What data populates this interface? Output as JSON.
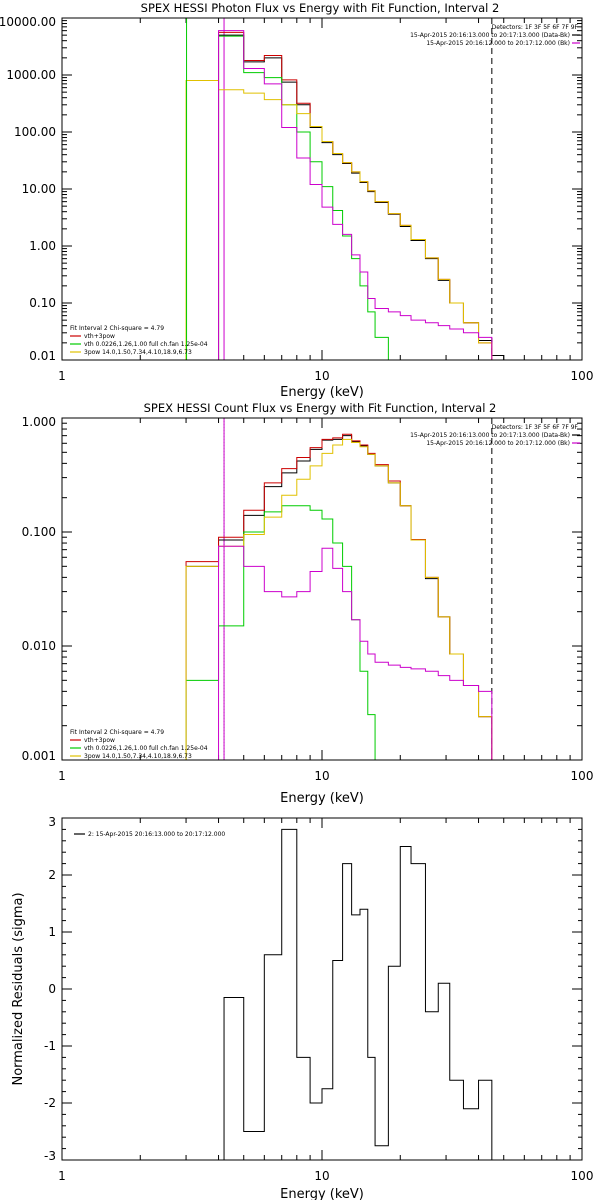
{
  "panels": [
    {
      "id": "photon",
      "title": "SPEX HESSI Photon Flux vs Energy with Fit Function, Interval 2",
      "xlabel": "Energy (keV)",
      "ylabel": "",
      "x_scale": "log",
      "y_scale": "log",
      "xlim": [
        1,
        100
      ],
      "ylim": [
        0.01,
        10000
      ],
      "x_ticks": [
        {
          "v": 1,
          "label": "1"
        },
        {
          "v": 10,
          "label": "10"
        },
        {
          "v": 100,
          "label": "100"
        }
      ],
      "y_ticks": [
        {
          "v": 0.01,
          "label": "0.01"
        },
        {
          "v": 0.1,
          "label": "0.10"
        },
        {
          "v": 1,
          "label": "1.00"
        },
        {
          "v": 10,
          "label": "10.00"
        },
        {
          "v": 100,
          "label": "100.00"
        },
        {
          "v": 1000,
          "label": "1000.00"
        },
        {
          "v": 10000,
          "label": "10000.00"
        }
      ],
      "vlines": [
        {
          "x": 4.2,
          "style": "solid",
          "color": "#cc00cc"
        },
        {
          "x": 45,
          "style": "dashed",
          "color": "#000000"
        }
      ],
      "info": [
        "Detectors: 1F 3F 5F 6F 7F 9F",
        "15-Apr-2015 20:16:13.000 to 20:17:13.000 (Data-Bk)",
        "15-Apr-2015 20:16:12.000 to 20:17:12.000 (Bk)"
      ],
      "info_colors": [
        "#000000",
        "#000000",
        "#cc00cc"
      ],
      "legend": [
        {
          "text": "Fit Interval 2   Chi-square = 4.79",
          "color": null
        },
        {
          "text": "vth+3pow",
          "color": "#cc0000"
        },
        {
          "text": "vth 0.0226,1.26,1.00  full ch.fan 1.25e-04",
          "color": "#00cc00"
        },
        {
          "text": "3pow 14.0,1.50,7.34,4.10,18.9,6.73",
          "color": "#e0c000"
        }
      ]
    },
    {
      "id": "count",
      "title": "SPEX HESSI Count Flux vs Energy with Fit Function, Interval 2",
      "xlabel": "Energy (keV)",
      "ylabel": "",
      "x_scale": "log",
      "y_scale": "log",
      "xlim": [
        1,
        100
      ],
      "ylim": [
        0.001,
        1
      ],
      "x_ticks": [
        {
          "v": 1,
          "label": "1"
        },
        {
          "v": 10,
          "label": "10"
        },
        {
          "v": 100,
          "label": "100"
        }
      ],
      "y_ticks": [
        {
          "v": 0.001,
          "label": "0.001"
        },
        {
          "v": 0.01,
          "label": "0.010"
        },
        {
          "v": 0.1,
          "label": "0.100"
        },
        {
          "v": 1,
          "label": "1.000"
        }
      ],
      "vlines": [
        {
          "x": 4.2,
          "style": "dotted",
          "color": "#000000"
        },
        {
          "x": 4.2,
          "style": "solid",
          "color": "#cc00cc"
        },
        {
          "x": 45,
          "style": "dashed",
          "color": "#000000"
        }
      ],
      "info": [
        "Detectors: 1F 3F 5F 6F 7F 9F",
        "15-Apr-2015 20:16:13.000 to 20:17:13.000 (Data-Bk)",
        "15-Apr-2015 20:16:12.000 to 20:17:12.000 (Bk)"
      ],
      "info_colors": [
        "#000000",
        "#000000",
        "#cc00cc"
      ],
      "legend": [
        {
          "text": "Fit Interval 2   Chi-square = 4.79",
          "color": null
        },
        {
          "text": "vth+3pow",
          "color": "#cc0000"
        },
        {
          "text": "vth 0.0226,1.26,1.00  full ch.fan 1.25e-04",
          "color": "#00cc00"
        },
        {
          "text": "3pow 14.0,1.50,7.34,4.10,18.9,6.73",
          "color": "#e0c000"
        }
      ]
    },
    {
      "id": "residuals",
      "title": "",
      "xlabel": "Energy (keV)",
      "ylabel": "Normalized Residuals (sigma)",
      "x_scale": "log",
      "y_scale": "linear",
      "xlim": [
        1,
        100
      ],
      "ylim": [
        -3,
        3
      ],
      "x_ticks": [
        {
          "v": 1,
          "label": "1"
        },
        {
          "v": 10,
          "label": "10"
        },
        {
          "v": 100,
          "label": "100"
        }
      ],
      "y_ticks": [
        {
          "v": -3,
          "label": "-3"
        },
        {
          "v": -2,
          "label": "-2"
        },
        {
          "v": -1,
          "label": "-1"
        },
        {
          "v": 0,
          "label": "0"
        },
        {
          "v": 1,
          "label": "1"
        },
        {
          "v": 2,
          "label": "2"
        },
        {
          "v": 3,
          "label": "3"
        }
      ],
      "vlines": [],
      "info": [],
      "info_colors": [],
      "legend": [
        {
          "text": "2: 15-Apr-2015 20:16:13.000 to 20:17:12.000",
          "color": "#000000"
        }
      ]
    }
  ],
  "chart_data": [
    {
      "type": "line",
      "title": "SPEX HESSI Photon Flux vs Energy with Fit Function, Interval 2",
      "xlabel": "Energy (keV)",
      "x_scale": "log",
      "y_scale": "log",
      "xlim": [
        1,
        100
      ],
      "ylim": [
        0.01,
        10000
      ],
      "bin_edges": [
        3,
        4,
        5,
        6,
        7,
        8,
        9,
        10,
        11,
        12,
        13,
        14,
        15,
        16,
        18,
        20,
        22,
        25,
        28,
        31,
        35,
        40,
        45,
        50
      ],
      "series": [
        {
          "name": "",
          "color": "#000000",
          "values": [
            null,
            5000,
            1700,
            2000,
            750,
            300,
            120,
            65,
            40,
            28,
            19,
            13,
            9,
            5.8,
            3.6,
            2.2,
            1.25,
            0.6,
            0.25,
            0.1,
            0.045,
            0.022,
            0.012
          ]
        },
        {
          "name": "vth+3pow",
          "color": "#cc0000",
          "values": [
            null,
            5600,
            1800,
            2200,
            820,
            320,
            125,
            68,
            42,
            29,
            20,
            13.5,
            9.3,
            6.0,
            3.7,
            2.3,
            1.3,
            0.62,
            0.26,
            0.1,
            0.045,
            0.02,
            0.01
          ]
        },
        {
          "name": "vth",
          "color": "#00cc00",
          "values": [
            null,
            4800,
            1100,
            900,
            300,
            100,
            30,
            11,
            4.2,
            1.5,
            0.6,
            0.2,
            0.07,
            0.025,
            0.01,
            null,
            null,
            null,
            null,
            null,
            null,
            null,
            null
          ]
        },
        {
          "name": "3pow",
          "color": "#e0c000",
          "values": [
            800,
            550,
            480,
            370,
            300,
            210,
            125,
            68,
            42,
            29,
            20,
            13.5,
            9.3,
            6.0,
            3.7,
            2.3,
            1.3,
            0.62,
            0.26,
            0.1,
            0.045,
            0.02,
            0.01
          ]
        },
        {
          "name": "Bk",
          "color": "#cc00cc",
          "values": [
            null,
            6000,
            1300,
            700,
            120,
            35,
            12,
            4.8,
            2.4,
            1.6,
            0.7,
            0.35,
            0.12,
            0.08,
            0.07,
            0.06,
            0.05,
            0.045,
            0.04,
            0.035,
            0.03,
            0.025,
            null
          ]
        }
      ]
    },
    {
      "type": "line",
      "title": "SPEX HESSI Count Flux vs Energy with Fit Function, Interval 2",
      "xlabel": "Energy (keV)",
      "x_scale": "log",
      "y_scale": "log",
      "xlim": [
        1,
        100
      ],
      "ylim": [
        0.001,
        1
      ],
      "bin_edges": [
        3,
        4,
        5,
        6,
        7,
        8,
        9,
        10,
        11,
        12,
        13,
        14,
        15,
        16,
        18,
        20,
        22,
        25,
        28,
        31,
        35,
        40,
        45,
        50
      ],
      "series": [
        {
          "name": "",
          "color": "#000000",
          "values": [
            0.05,
            0.085,
            0.14,
            0.25,
            0.33,
            0.42,
            0.53,
            0.64,
            0.65,
            0.7,
            0.62,
            0.57,
            0.48,
            0.38,
            0.27,
            0.17,
            0.085,
            0.039,
            0.018,
            0.0085,
            0.0045,
            0.0024,
            null
          ]
        },
        {
          "name": "vth+3pow",
          "color": "#cc0000",
          "values": [
            0.055,
            0.09,
            0.155,
            0.27,
            0.36,
            0.45,
            0.55,
            0.65,
            0.67,
            0.72,
            0.63,
            0.58,
            0.49,
            0.39,
            0.28,
            0.17,
            0.086,
            0.04,
            0.018,
            0.0085,
            0.0045,
            0.0024,
            0.001
          ]
        },
        {
          "name": "vth",
          "color": "#00cc00",
          "values": [
            0.005,
            0.015,
            0.1,
            0.15,
            0.17,
            0.17,
            0.155,
            0.13,
            0.08,
            0.05,
            0.017,
            0.006,
            0.0025,
            0.001,
            null,
            null,
            null,
            null,
            null,
            null,
            null,
            null,
            null
          ]
        },
        {
          "name": "3pow",
          "color": "#e0c000",
          "values": [
            0.05,
            0.075,
            0.095,
            0.135,
            0.21,
            0.29,
            0.38,
            0.49,
            0.58,
            0.65,
            0.61,
            0.56,
            0.48,
            0.38,
            0.27,
            0.17,
            0.085,
            0.04,
            0.018,
            0.0085,
            0.0045,
            0.0024,
            0.001
          ]
        },
        {
          "name": "Bk",
          "color": "#cc00cc",
          "values": [
            null,
            0.075,
            0.05,
            0.03,
            0.027,
            0.03,
            0.045,
            0.072,
            0.048,
            0.03,
            0.017,
            0.011,
            0.0085,
            0.0072,
            0.0068,
            0.0065,
            0.0063,
            0.006,
            0.0055,
            0.005,
            0.0045,
            0.004,
            null
          ]
        }
      ]
    },
    {
      "type": "line",
      "title": "",
      "xlabel": "Energy (keV)",
      "ylabel": "Normalized Residuals (sigma)",
      "x_scale": "log",
      "y_scale": "linear",
      "xlim": [
        1,
        100
      ],
      "ylim": [
        -3,
        3
      ],
      "bin_edges": [
        4.2,
        5,
        6,
        7,
        8,
        9,
        10,
        11,
        12,
        13,
        14,
        15,
        16,
        18,
        20,
        22,
        25,
        28,
        31,
        35,
        40,
        45
      ],
      "series": [
        {
          "name": "2: 15-Apr-2015 20:16:13.000 to 20:17:12.000",
          "color": "#000000",
          "values": [
            -0.15,
            -2.5,
            0.6,
            2.8,
            -1.2,
            -2.0,
            -1.75,
            0.5,
            2.2,
            1.3,
            1.4,
            -1.2,
            -2.75,
            0.4,
            2.5,
            2.2,
            -0.4,
            0.1,
            -1.6,
            -2.1,
            -1.6
          ]
        }
      ]
    }
  ]
}
